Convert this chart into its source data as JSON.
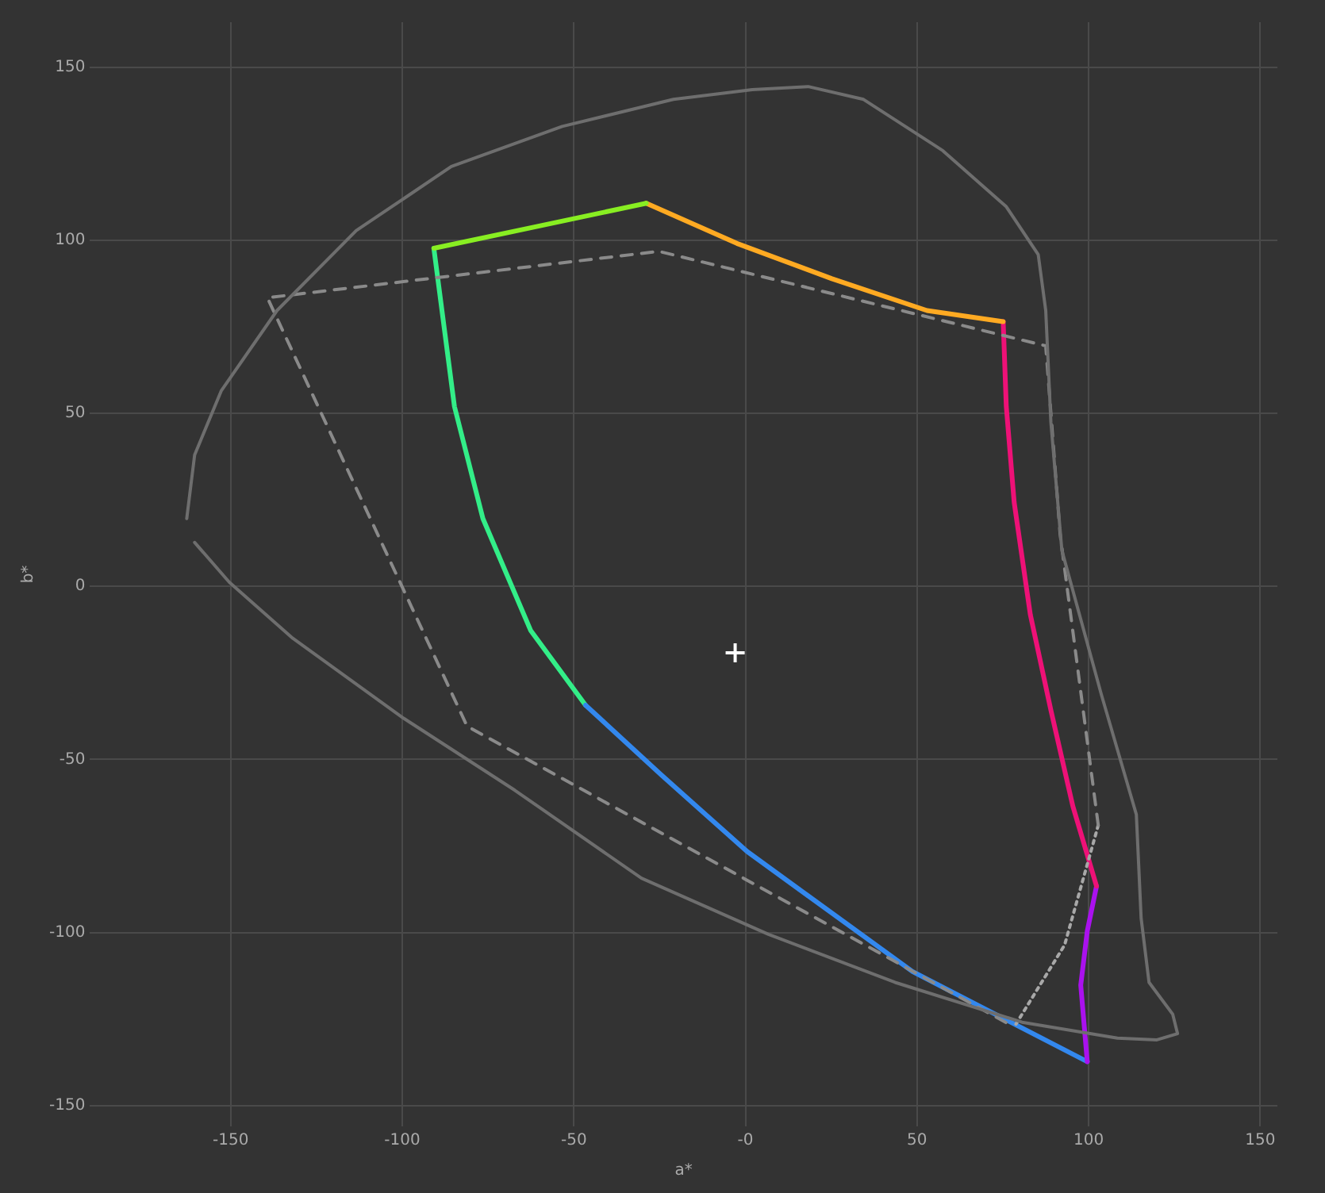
{
  "chart_data": {
    "type": "line",
    "xlabel": "a*",
    "ylabel": "b*",
    "xlim": [
      -191,
      155
    ],
    "ylim": [
      -156,
      163
    ],
    "xticks": [
      -150,
      -100,
      -50,
      {
        "value": 0,
        "label": "-0"
      },
      50,
      100,
      150
    ],
    "yticks": [
      -150,
      -100,
      -50,
      0,
      50,
      100,
      150
    ],
    "grid": true,
    "legend": false,
    "marker": "none",
    "series": [
      {
        "color": "#6e6e6e",
        "line_style": "solid",
        "x": [
          -162.8,
          -160.5,
          -152.7,
          -136.5,
          -113.4,
          -85.7,
          -53.4,
          -21,
          2,
          18.3,
          34.4,
          57.5,
          76,
          85.3,
          87.5,
          89,
          92.2,
          103.7,
          113.9,
          115.3,
          117.6,
          124.5,
          125.9,
          119.9,
          108.4,
          80.6,
          43.6,
          6.7,
          -30.3,
          -67.2,
          -99.6,
          -131.9,
          -150.4,
          -160.5
        ],
        "values": [
          19.6,
          38,
          56.6,
          79.7,
          102.8,
          121.3,
          132.9,
          140.7,
          143.5,
          144.4,
          140.7,
          125.9,
          109.7,
          95.9,
          79.7,
          47.4,
          10.4,
          -31.2,
          -65.9,
          -95.9,
          -114.4,
          -123.6,
          -129.2,
          -131,
          -130.5,
          -125.9,
          -114.4,
          -100.5,
          -84.3,
          -58.9,
          -38.1,
          -15,
          1.2,
          12.7
        ]
      },
      {
        "color": "#8a8a8a",
        "line_style": "dashed",
        "x": [
          102.8,
          91.7,
          87.5,
          -25.2,
          -139.3,
          -81.1,
          78.3
        ],
        "values": [
          -69,
          15,
          69.5,
          96.8,
          83.4,
          -40.4,
          -127.3
        ]
      },
      {
        "color": "#a8a8a8",
        "line_style": "dotted",
        "x": [
          102.8,
          93,
          78.3
        ],
        "values": [
          -69,
          -103.6,
          -127.3
        ]
      },
      {
        "color": "#88ee22",
        "line_style": "solid",
        "x": [
          -90.8,
          -59.8,
          -28.9
        ],
        "values": [
          97.7,
          104.2,
          110.7
        ]
      },
      {
        "color": "#ffaa22",
        "line_style": "solid",
        "x": [
          -28.9,
          -2.5,
          25.2,
          52.9,
          75.1
        ],
        "values": [
          110.7,
          99.1,
          88.9,
          79.7,
          76.5
        ]
      },
      {
        "color": "#ee1177",
        "line_style": "solid",
        "x": [
          75.1,
          76,
          78.3,
          83,
          89,
          95.4,
          102.3
        ],
        "values": [
          76.5,
          52,
          24.3,
          -8.1,
          -35.8,
          -63.5,
          -86.6
        ]
      },
      {
        "color": "#aa11ee",
        "line_style": "solid",
        "x": [
          102.3,
          99.6,
          97.7,
          99.6
        ],
        "values": [
          -86.6,
          -99.6,
          -115.2,
          -137.3
        ]
      },
      {
        "color": "#3388ee",
        "line_style": "solid",
        "x": [
          99.6,
          48.7,
          0.5,
          -24.5,
          -46.6
        ],
        "values": [
          -137.3,
          -111.3,
          -76.6,
          -54.5,
          -34.3
        ]
      },
      {
        "color": "#33ee88",
        "line_style": "solid",
        "x": [
          -46.6,
          -62.6,
          -76.5,
          -84.8,
          -90.8
        ],
        "values": [
          -34.3,
          -12.7,
          19.6,
          52,
          97.7
        ]
      },
      {
        "type": "scatter",
        "color": "#ffffff",
        "marker": "cross",
        "x": [
          -3
        ],
        "values": [
          -19.2
        ]
      }
    ]
  }
}
